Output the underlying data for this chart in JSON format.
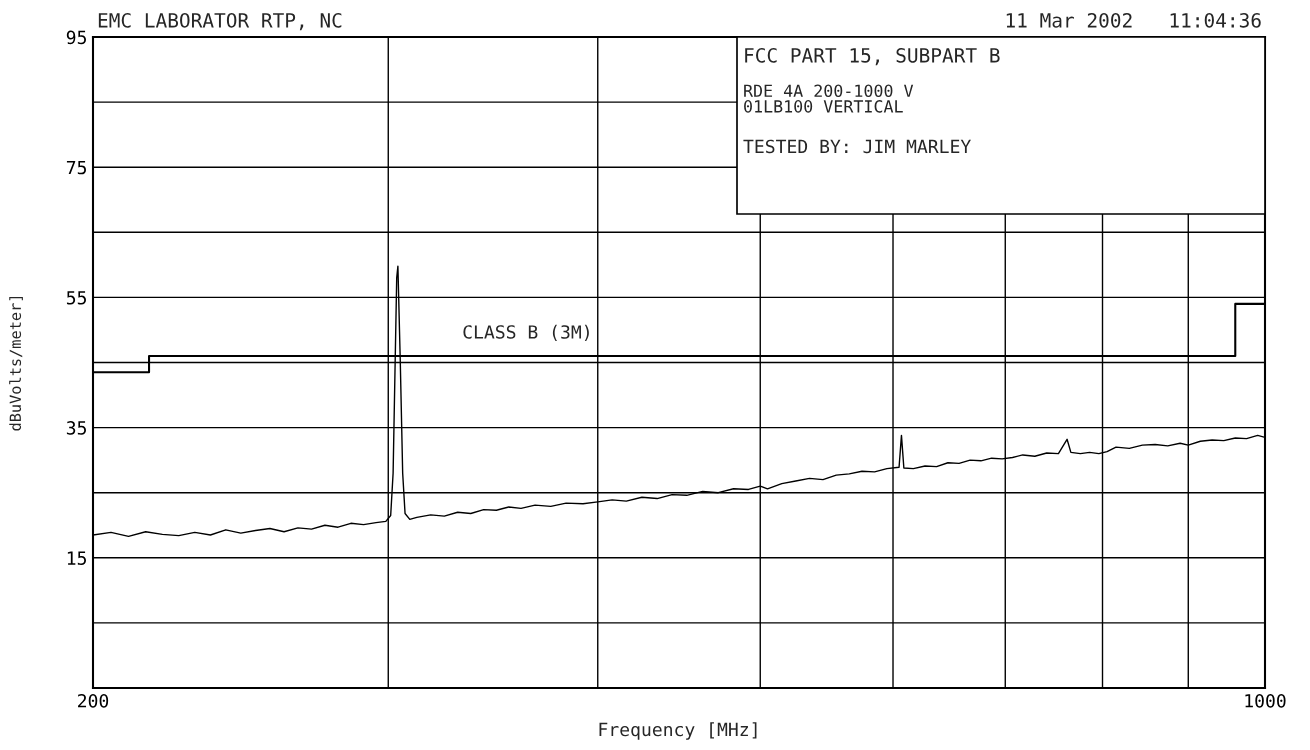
{
  "chart_data": {
    "type": "line",
    "title": "EMC LABORATOR RTP, NC",
    "xlabel": "Frequency [MHz]",
    "ylabel": "dBuVolts/meter]",
    "log": "x",
    "xlim": [
      200,
      1000
    ],
    "xticks": [
      200,
      {
        "value": 300,
        "label": null
      },
      {
        "value": 400,
        "label": null
      },
      {
        "value": 500,
        "label": null
      },
      {
        "value": 600,
        "label": null
      },
      {
        "value": 700,
        "label": null
      },
      {
        "value": 800,
        "label": null
      },
      {
        "value": 900,
        "label": null
      },
      1000
    ],
    "ylim": [
      -5,
      95
    ],
    "yticks": [
      {
        "value": -5,
        "label": null
      },
      {
        "value": 5,
        "label": null
      },
      15,
      {
        "value": 25,
        "label": null
      },
      35,
      {
        "value": 45,
        "label": null
      },
      55,
      {
        "value": 65,
        "label": null
      },
      75,
      {
        "value": 85,
        "label": null
      },
      95
    ],
    "grid": true,
    "legend": false,
    "series": [
      {
        "name": "CLASS B (3M)",
        "color": "#000000",
        "type": "step",
        "x": [
          200,
          216,
          960,
          1000
        ],
        "values": [
          43.5,
          46,
          54,
          54
        ]
      },
      {
        "color": "#000000",
        "x": [
          200,
          205,
          210,
          215,
          220,
          225,
          230,
          235,
          240,
          245,
          250,
          255,
          260,
          265,
          270,
          275,
          280,
          285,
          290,
          295,
          299,
          301,
          302,
          303.5,
          304,
          305,
          306,
          307,
          309,
          312,
          318,
          324,
          330,
          336,
          342,
          348,
          354,
          360,
          367,
          375,
          383,
          392,
          400,
          408,
          416,
          425,
          434,
          443,
          452,
          462,
          472,
          482,
          492,
          500,
          505,
          515,
          525,
          535,
          545,
          555,
          565,
          575,
          585,
          595,
          605,
          607,
          609,
          617,
          627,
          637,
          647,
          657,
          667,
          677,
          687,
          697,
          707,
          717,
          729,
          741,
          753,
          762,
          766,
          776,
          786,
          796,
          805,
          815,
          830,
          845,
          860,
          875,
          890,
          900,
          915,
          930,
          945,
          960,
          975,
          990,
          1000
        ],
        "values": [
          18.5,
          18.9,
          18.3,
          19.0,
          18.6,
          18.4,
          18.9,
          18.5,
          19.3,
          18.8,
          19.2,
          19.5,
          19.0,
          19.6,
          19.4,
          20.0,
          19.7,
          20.3,
          20.1,
          20.4,
          20.6,
          21.5,
          28,
          58,
          59.8,
          45,
          28,
          21.8,
          20.9,
          21.2,
          21.6,
          21.4,
          22.0,
          21.8,
          22.4,
          22.3,
          22.8,
          22.6,
          23.1,
          22.9,
          23.4,
          23.3,
          23.6,
          23.9,
          23.7,
          24.3,
          24.1,
          24.7,
          24.6,
          25.2,
          25.0,
          25.6,
          25.5,
          26.0,
          25.6,
          26.4,
          26.8,
          27.2,
          27.0,
          27.7,
          27.9,
          28.3,
          28.2,
          28.7,
          28.9,
          33.8,
          28.8,
          28.7,
          29.1,
          29.0,
          29.6,
          29.5,
          30.0,
          29.9,
          30.3,
          30.2,
          30.4,
          30.8,
          30.6,
          31.1,
          31.0,
          33.2,
          31.2,
          31.0,
          31.2,
          31.0,
          31.3,
          32.0,
          31.8,
          32.3,
          32.4,
          32.2,
          32.6,
          32.3,
          32.9,
          33.1,
          33.0,
          33.4,
          33.3,
          33.8,
          33.5
        ]
      }
    ],
    "annotations": [
      "11 Mar 2002   11:04:36",
      "FCC PART 15, SUBPART B",
      "RDE 4A 200-1000 V\n01LB100 VERTICAL",
      "TESTED BY: JIM MARLEY"
    ]
  }
}
